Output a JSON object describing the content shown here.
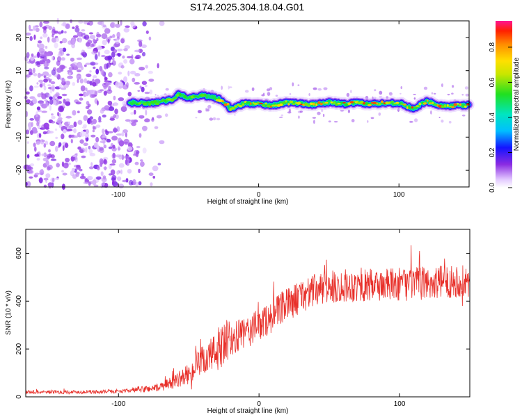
{
  "title": "S174.2025.304.18.04.G01",
  "chart_data": [
    {
      "type": "heatmap",
      "name": "spectrogram",
      "xlabel": "Height of straight line (km)",
      "ylabel": "Frequency (Hz)",
      "xlim": [
        -166,
        150
      ],
      "ylim": [
        -25,
        25
      ],
      "xticks": [
        -100,
        0,
        100
      ],
      "xtick_labels": [
        "-100",
        "0",
        "100"
      ],
      "yticks": [
        -20,
        -10,
        0,
        10,
        20
      ],
      "ytick_labels": [
        "-20",
        "-10",
        "0",
        "10",
        "20"
      ],
      "colorbar": {
        "label": "Normalized spectral amplitude",
        "range": [
          0,
          0.95
        ],
        "ticks": [
          0,
          0.2,
          0.4,
          0.6,
          0.8
        ],
        "tick_labels": [
          "0.0",
          "0.2",
          "0.4",
          "0.6",
          "0.8"
        ]
      },
      "noise_region_end_km": -68,
      "signal_start_km": -92,
      "signal_track": {
        "x": [
          -92,
          -80,
          -70,
          -60,
          -57,
          -50,
          -40,
          -30,
          -24,
          -20,
          -10,
          0,
          10,
          20,
          30,
          40,
          50,
          60,
          70,
          80,
          90,
          100,
          110,
          120,
          130,
          140,
          150
        ],
        "freq": [
          0.4,
          0.2,
          0.6,
          1.4,
          3.0,
          1.8,
          2.6,
          1.8,
          0.6,
          -1.6,
          0.2,
          0.0,
          -0.4,
          0.4,
          0.2,
          -0.2,
          0.5,
          0.0,
          0.4,
          0.0,
          0.2,
          0.3,
          -1.5,
          0.8,
          -0.5,
          -0.6,
          -0.4
        ]
      }
    },
    {
      "type": "line",
      "name": "snr",
      "xlabel": "Height of straight line (km)",
      "ylabel": "SNR (10 * v/v)",
      "xlim": [
        -166,
        150
      ],
      "ylim": [
        0,
        700
      ],
      "xticks": [
        -100,
        0,
        100
      ],
      "xtick_labels": [
        "-100",
        "0",
        "100"
      ],
      "yticks": [
        0,
        200,
        400,
        600
      ],
      "ytick_labels": [
        "0",
        "200",
        "400",
        "600"
      ],
      "series_color": "#e8302a",
      "envelope": {
        "x": [
          -166,
          -140,
          -110,
          -95,
          -80,
          -70,
          -60,
          -50,
          -40,
          -30,
          -20,
          -10,
          0,
          10,
          20,
          30,
          40,
          60,
          80,
          100,
          120,
          140,
          150
        ],
        "y": [
          20,
          20,
          21,
          25,
          33,
          40,
          65,
          95,
          150,
          190,
          235,
          265,
          300,
          340,
          385,
          420,
          445,
          465,
          465,
          470,
          475,
          485,
          480
        ]
      }
    }
  ]
}
